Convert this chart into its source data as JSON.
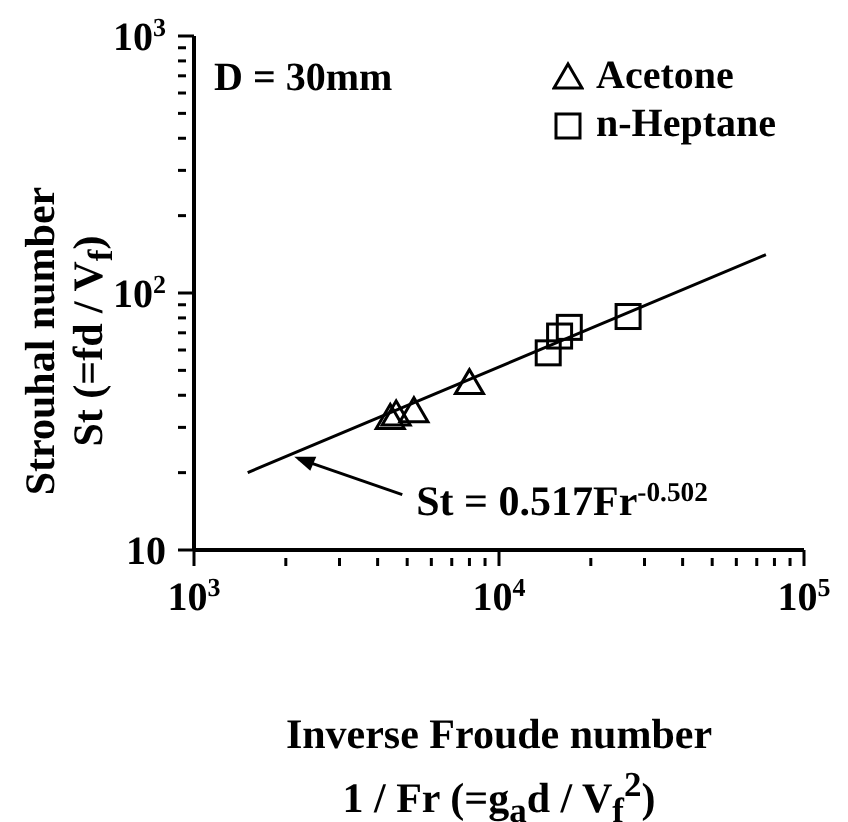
{
  "chart_data": {
    "type": "scatter",
    "xlabel": "Inverse Froude number\n1 / Fr (=g$_{a}$d / V$_{f}$$^{2}$)",
    "ylabel": "Strouhal number\nSt (=fd / V$_{f}$)",
    "annotations": [
      "D = 30mm",
      {
        "text": "St = 0.517Fr$^{-0.502}$",
        "x": 2100,
        "y": 23.5
      }
    ],
    "series": [
      {
        "name": "Acetone",
        "color": "#000000",
        "marker": "triangle",
        "x": [
          4400,
          4600,
          5260,
          8000
        ],
        "values": [
          32.5,
          33.5,
          34.5,
          44.4
        ]
      },
      {
        "name": "n-Heptane",
        "color": "#000000",
        "marker": "square",
        "x": [
          14500,
          15800,
          17000,
          26500
        ],
        "values": [
          58.5,
          68,
          73.5,
          81
        ]
      },
      {
        "type": "line",
        "color": "#000000",
        "marker": "none",
        "x": [
          1500,
          75000
        ],
        "values": [
          20,
          141
        ]
      }
    ],
    "log": "xy",
    "xlim": [
      1000,
      100000
    ],
    "ylim": [
      10,
      1000
    ],
    "xticks": [
      {
        "value": 1000,
        "label": "10$^{3}$"
      },
      {
        "value": 2000,
        "label": null
      },
      {
        "value": 3000,
        "label": null
      },
      {
        "value": 4000,
        "label": null
      },
      {
        "value": 5000,
        "label": null
      },
      {
        "value": 6000,
        "label": null
      },
      {
        "value": 7000,
        "label": null
      },
      {
        "value": 8000,
        "label": null
      },
      {
        "value": 9000,
        "label": null
      },
      {
        "value": 10000,
        "label": "10$^{4}$"
      },
      {
        "value": 20000,
        "label": null
      },
      {
        "value": 30000,
        "label": null
      },
      {
        "value": 40000,
        "label": null
      },
      {
        "value": 50000,
        "label": null
      },
      {
        "value": 60000,
        "label": null
      },
      {
        "value": 70000,
        "label": null
      },
      {
        "value": 80000,
        "label": null
      },
      {
        "value": 90000,
        "label": null
      },
      {
        "value": 100000,
        "label": "10$^{5}$"
      }
    ],
    "yticks": [
      10,
      {
        "value": 20,
        "label": null
      },
      {
        "value": 30,
        "label": null
      },
      {
        "value": 40,
        "label": null
      },
      {
        "value": 50,
        "label": null
      },
      {
        "value": 60,
        "label": null
      },
      {
        "value": 70,
        "label": null
      },
      {
        "value": 80,
        "label": null
      },
      {
        "value": 90,
        "label": null
      },
      {
        "value": 100,
        "label": "10$^{2}$"
      },
      {
        "value": 200,
        "label": null
      },
      {
        "value": 300,
        "label": null
      },
      {
        "value": 400,
        "label": null
      },
      {
        "value": 500,
        "label": null
      },
      {
        "value": 600,
        "label": null
      },
      {
        "value": 700,
        "label": null
      },
      {
        "value": 800,
        "label": null
      },
      {
        "value": 900,
        "label": null
      },
      {
        "value": 1000,
        "label": "10$^{3}$"
      }
    ],
    "grid": false,
    "legend": "top right"
  }
}
